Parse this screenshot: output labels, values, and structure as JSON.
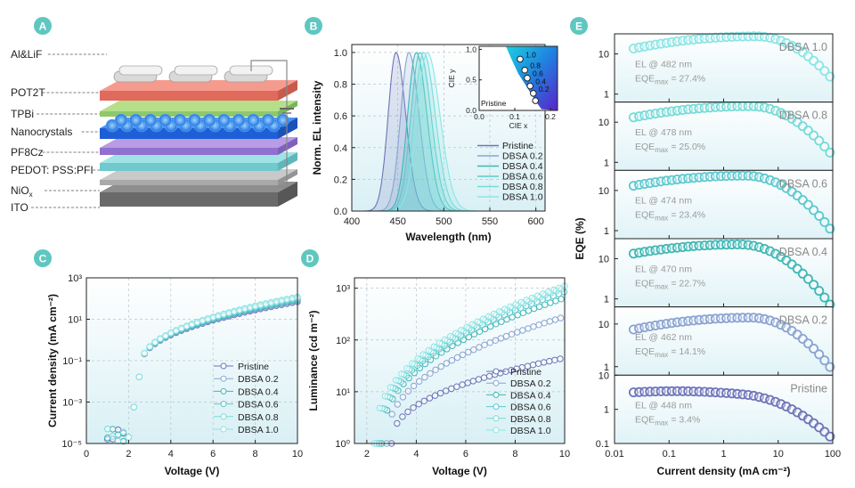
{
  "colors": {
    "Pristine": "#6f73b8",
    "DBSA 0.2": "#8aa3d2",
    "DBSA 0.4": "#3fb7b5",
    "DBSA 0.6": "#5cc9cf",
    "DBSA 0.8": "#76dbd8",
    "DBSA 1.0": "#8be5e6",
    "badge": "#5fc7c0",
    "panel_bg": "#e8f6f9"
  },
  "panels": {
    "A": {
      "badge": "A",
      "layers": [
        "Al&LiF",
        "POT2T",
        "TPBi",
        "Nanocrystals",
        "PF8Cz",
        "PEDOT: PSS:PFI",
        "NiO",
        "ITO"
      ],
      "nio_sub": "x"
    },
    "B": {
      "badge": "B"
    },
    "C": {
      "badge": "C"
    },
    "D": {
      "badge": "D"
    },
    "E": {
      "badge": "E"
    }
  },
  "chart_data": [
    {
      "id": "B",
      "type": "line",
      "title": "",
      "xlabel": "Wavelength (nm)",
      "ylabel": "Norm. EL intensity",
      "xlim": [
        400,
        610
      ],
      "ylim": [
        0,
        1.05
      ],
      "x_ticks": [
        "400",
        "450",
        "500",
        "550",
        "600"
      ],
      "y_ticks": [
        "0.0",
        "0.2",
        "0.4",
        "0.6",
        "0.8",
        "1.0"
      ],
      "series": [
        {
          "name": "Pristine",
          "peak": 448,
          "fwhm": 20
        },
        {
          "name": "DBSA 0.2",
          "peak": 462,
          "fwhm": 21
        },
        {
          "name": "DBSA 0.4",
          "peak": 470,
          "fwhm": 22
        },
        {
          "name": "DBSA 0.6",
          "peak": 474,
          "fwhm": 23
        },
        {
          "name": "DBSA 0.8",
          "peak": 478,
          "fwhm": 24
        },
        {
          "name": "DBSA 1.0",
          "peak": 482,
          "fwhm": 26
        }
      ],
      "inset": {
        "type": "scatter",
        "xlabel": "CIE x",
        "ylabel": "CIE y",
        "xlim": [
          0,
          0.22
        ],
        "ylim": [
          0,
          1.05
        ],
        "x_ticks": [
          "0.0",
          "0.1",
          "0.2"
        ],
        "y_ticks": [
          "0.0",
          "0.5",
          "1.0"
        ],
        "point_labels": [
          "1.0",
          "0.8",
          "0.6",
          "0.4",
          "0.2"
        ],
        "annotation": "Pristine",
        "points": [
          {
            "x": 0.115,
            "y": 0.84
          },
          {
            "x": 0.128,
            "y": 0.66
          },
          {
            "x": 0.135,
            "y": 0.53
          },
          {
            "x": 0.143,
            "y": 0.4
          },
          {
            "x": 0.152,
            "y": 0.28
          },
          {
            "x": 0.158,
            "y": 0.16
          }
        ]
      }
    },
    {
      "id": "C",
      "type": "scatter",
      "xlabel": "Voltage (V)",
      "ylabel": "Current density (mA cm⁻²)",
      "xlim": [
        0,
        10
      ],
      "ylim_log10": [
        -5,
        3
      ],
      "x_ticks": [
        "0",
        "2",
        "4",
        "6",
        "8",
        "10"
      ],
      "y_ticks": [
        "10⁻⁵",
        "10⁻³",
        "10⁻¹",
        "10¹",
        "10³"
      ],
      "turn_on_V": 2.0,
      "series": [
        {
          "name": "Pristine",
          "j_at_10V": 70
        },
        {
          "name": "DBSA 0.2",
          "j_at_10V": 80
        },
        {
          "name": "DBSA 0.4",
          "j_at_10V": 90
        },
        {
          "name": "DBSA 0.6",
          "j_at_10V": 100
        },
        {
          "name": "DBSA 0.8",
          "j_at_10V": 110
        },
        {
          "name": "DBSA 1.0",
          "j_at_10V": 120
        }
      ]
    },
    {
      "id": "D",
      "type": "scatter",
      "xlabel": "Voltage (V)",
      "ylabel": "Luminance (cd m⁻²)",
      "xlim": [
        1.5,
        10
      ],
      "ylim_log10": [
        0,
        3.2
      ],
      "x_ticks": [
        "2",
        "4",
        "6",
        "8",
        "10"
      ],
      "y_ticks": [
        "10⁰",
        "10¹",
        "10²",
        "10³"
      ],
      "series": [
        {
          "name": "Pristine",
          "v_on": 3.0,
          "l_at_10V": 45
        },
        {
          "name": "DBSA 0.2",
          "v_on": 2.8,
          "l_at_10V": 280
        },
        {
          "name": "DBSA 0.4",
          "v_on": 2.6,
          "l_at_10V": 650
        },
        {
          "name": "DBSA 0.6",
          "v_on": 2.5,
          "l_at_10V": 850
        },
        {
          "name": "DBSA 0.8",
          "v_on": 2.4,
          "l_at_10V": 1000
        },
        {
          "name": "DBSA 1.0",
          "v_on": 2.3,
          "l_at_10V": 1100
        }
      ]
    },
    {
      "id": "E",
      "type": "scatter",
      "xlabel": "Current density (mA cm⁻²)",
      "ylabel": "EQE (%)",
      "xlim_log10": [
        -2,
        2
      ],
      "x_ticks": [
        "0.01",
        "0.1",
        "1",
        "10",
        "100"
      ],
      "subplots": [
        {
          "name": "DBSA 1.0",
          "el_nm": 482,
          "eqe_max": 27.4,
          "el_label": "EL @ 482 nm",
          "eqe_label": "EQE",
          "eqe_sub": "max",
          "eqe_value": "= 27.4%",
          "y_ticks": [
            "1",
            "10"
          ],
          "ylim_log10": [
            -0.2,
            1.5
          ],
          "roll_center": 0.6
        },
        {
          "name": "DBSA 0.8",
          "el_nm": 478,
          "eqe_max": 25.0,
          "el_label": "EL @ 478 nm",
          "eqe_label": "EQE",
          "eqe_sub": "max",
          "eqe_value": "= 25.0%",
          "y_ticks": [
            "1",
            "10"
          ],
          "ylim_log10": [
            -0.2,
            1.5
          ],
          "roll_center": 0.5
        },
        {
          "name": "DBSA 0.6",
          "el_nm": 474,
          "eqe_max": 23.4,
          "el_label": "EL @ 474 nm",
          "eqe_label": "EQE",
          "eqe_sub": "max",
          "eqe_value": "= 23.4%",
          "y_ticks": [
            "1",
            "10"
          ],
          "ylim_log10": [
            -0.2,
            1.5
          ],
          "roll_center": 0.4
        },
        {
          "name": "DBSA 0.4",
          "el_nm": 470,
          "eqe_max": 22.7,
          "el_label": "EL @ 470 nm",
          "eqe_label": "EQE",
          "eqe_sub": "max",
          "eqe_value": "= 22.7%",
          "y_ticks": [
            "1",
            "10"
          ],
          "ylim_log10": [
            -0.2,
            1.5
          ],
          "roll_center": 0.3
        },
        {
          "name": "DBSA 0.2",
          "el_nm": 462,
          "eqe_max": 14.1,
          "el_label": "EL @ 462 nm",
          "eqe_label": "EQE",
          "eqe_sub": "max",
          "eqe_value": "= 14.1%",
          "y_ticks": [
            "1",
            "10"
          ],
          "ylim_log10": [
            -0.2,
            1.4
          ],
          "roll_center": 0.5
        },
        {
          "name": "Pristine",
          "el_nm": 448,
          "eqe_max": 3.4,
          "el_label": "EL @ 448 nm",
          "eqe_label": "EQE",
          "eqe_sub": "max",
          "eqe_value": "= 3.4%",
          "y_ticks": [
            "0.1",
            "1",
            "10"
          ],
          "ylim_log10": [
            -1,
            1
          ],
          "roll_center": 0.9
        }
      ]
    }
  ]
}
